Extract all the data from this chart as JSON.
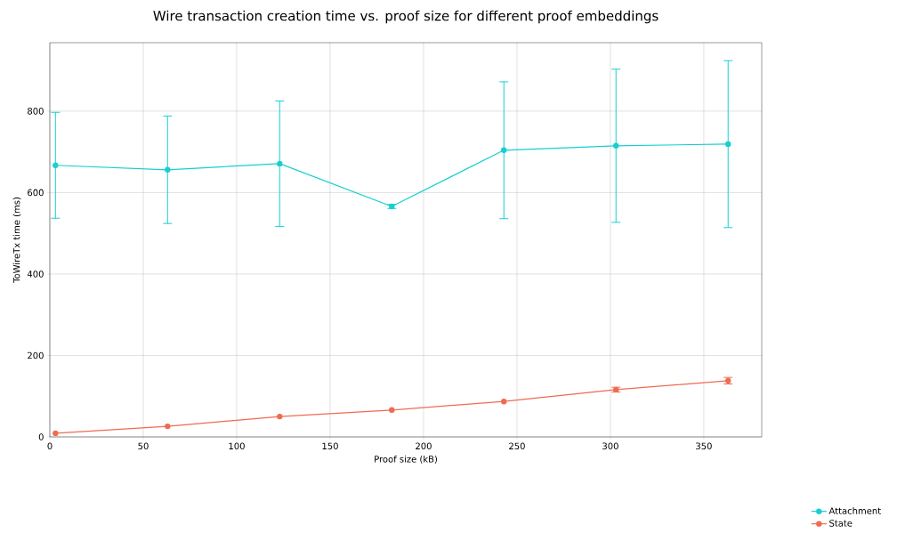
{
  "chart_data": {
    "type": "line",
    "title": "Wire transaction creation time vs. proof size for different proof embeddings",
    "xlabel": "Proof size (kB)",
    "ylabel": "ToWireTx time (ms)",
    "x": [
      3,
      63,
      123,
      183,
      243,
      303,
      363
    ],
    "series": [
      {
        "name": "Attachment",
        "color": "#17cfd0",
        "values": [
          667,
          656,
          671,
          566,
          704,
          715,
          719
        ],
        "errors": [
          130,
          132,
          154,
          5,
          168,
          188,
          205
        ]
      },
      {
        "name": "State",
        "color": "#ee6b52",
        "values": [
          9,
          26,
          50,
          66,
          87,
          116,
          138
        ],
        "errors": [
          null,
          null,
          null,
          null,
          null,
          6,
          8
        ]
      }
    ],
    "xlim": [
      0,
      381
    ],
    "ylim": [
      0,
      968
    ],
    "xticks": [
      0,
      50,
      100,
      150,
      200,
      250,
      300,
      350
    ],
    "yticks": [
      0,
      200,
      400,
      600,
      800
    ],
    "grid": true,
    "legend": "bottom right",
    "marker": "circle",
    "line_style": "solid"
  }
}
